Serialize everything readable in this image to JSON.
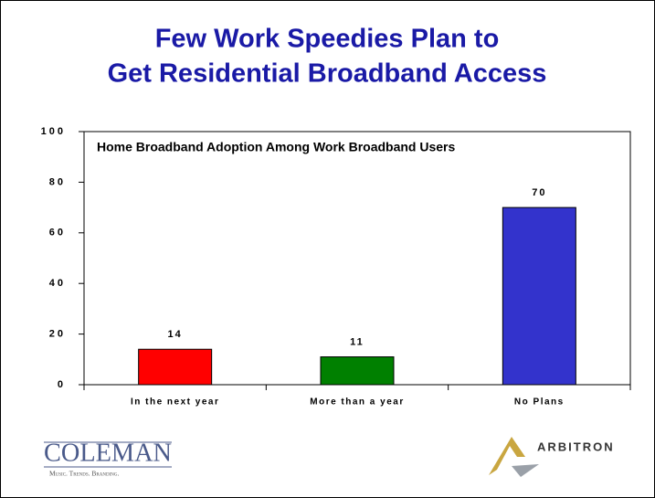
{
  "chart_data": {
    "type": "bar",
    "title": [
      "Few Work Speedies Plan to",
      "Get Residential Broadband Access"
    ],
    "subtitle": "Home Broadband Adoption Among Work Broadband Users",
    "categories": [
      "In the next year",
      "More than a year",
      "No Plans"
    ],
    "values": [
      14,
      11,
      70
    ],
    "colors": [
      "#ff0000",
      "#008000",
      "#3333cc"
    ],
    "ylim": [
      0,
      100
    ],
    "yticks": [
      0,
      20,
      40,
      60,
      80,
      100
    ],
    "grid": false
  },
  "logos": {
    "coleman": "COLEMAN",
    "coleman_tagline": "Music. Trends. Branding.",
    "arbitron": "ARBITRON"
  }
}
